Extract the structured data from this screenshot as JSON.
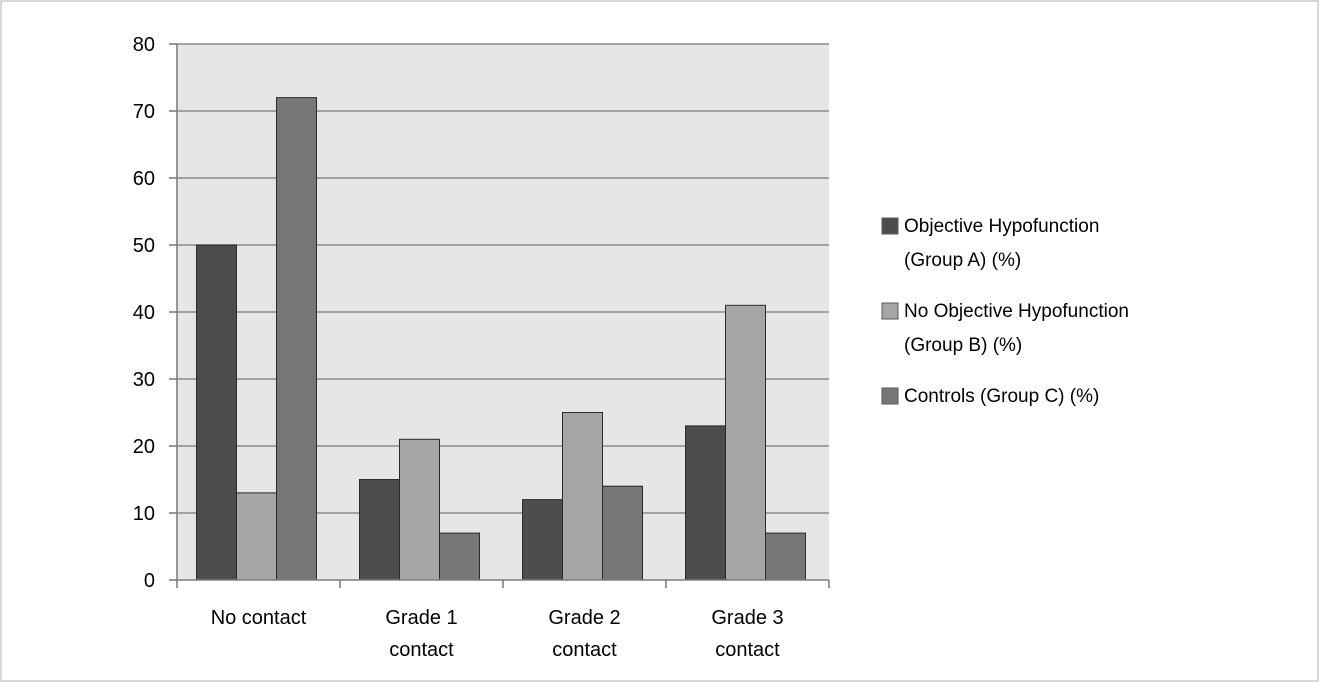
{
  "chart_data": {
    "type": "bar",
    "categories": [
      [
        "No contact"
      ],
      [
        "Grade 1",
        "contact"
      ],
      [
        "Grade 2",
        "contact"
      ],
      [
        "Grade 3",
        "contact"
      ]
    ],
    "series": [
      {
        "name": "Objective Hypofunction (Group A) (%)",
        "name_lines": [
          "Objective Hypofunction",
          "(Group A) (%)"
        ],
        "color": "#4d4d4d",
        "values": [
          50,
          15,
          12,
          23
        ]
      },
      {
        "name": "No Objective Hypofunction (Group B) (%)",
        "name_lines": [
          "No Objective Hypofunction",
          "(Group B) (%)"
        ],
        "color": "#a6a6a6",
        "values": [
          13,
          21,
          25,
          41
        ]
      },
      {
        "name": "Controls (Group C) (%)",
        "name_lines": [
          "Controls (Group C) (%)"
        ],
        "color": "#777777",
        "values": [
          72,
          7,
          14,
          7
        ]
      }
    ],
    "y_ticks": [
      "0",
      "10",
      "20",
      "30",
      "40",
      "50",
      "60",
      "70",
      "80"
    ],
    "ylim": [
      0,
      80
    ],
    "grid": true,
    "legend_position": "right",
    "plot_background": "#e6e6e6",
    "bar_outline": "#2a2a2a"
  }
}
